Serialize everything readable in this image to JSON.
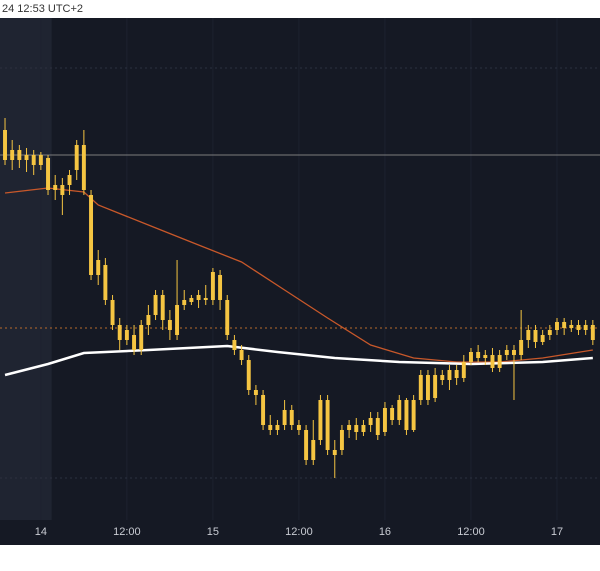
{
  "header": {
    "timestamp": "24 12:53 UTC+2"
  },
  "chart_data": {
    "type": "candlestick",
    "color": "#f5c542",
    "x": [
      -5,
      -4,
      -3,
      -2,
      -1,
      0,
      1,
      2,
      3,
      4,
      5,
      6,
      7,
      8,
      9,
      10,
      11,
      12,
      13,
      14,
      15,
      16,
      17,
      18,
      19,
      20,
      21,
      22,
      23,
      24,
      25,
      26,
      27,
      28,
      29,
      30,
      31,
      32,
      33,
      34,
      35,
      36,
      37,
      38,
      39,
      40,
      41,
      42,
      43,
      44,
      45,
      46,
      47,
      48,
      49,
      50,
      51,
      52,
      53,
      54,
      55,
      56,
      57,
      58,
      59,
      60,
      61,
      62,
      63,
      64,
      65,
      66,
      67,
      68,
      69,
      70,
      71,
      72,
      73,
      74,
      75,
      76,
      77
    ],
    "open": [
      390,
      360,
      370,
      360,
      365,
      355,
      362,
      330,
      335,
      335,
      350,
      375,
      325,
      245,
      255,
      220,
      195,
      180,
      185,
      170,
      195,
      205,
      225,
      200,
      185,
      215,
      218,
      220,
      222,
      220,
      245,
      220,
      180,
      170,
      160,
      130,
      125,
      95,
      90,
      95,
      110,
      95,
      90,
      60,
      80,
      120,
      70,
      70,
      90,
      95,
      88,
      95,
      102,
      88,
      112,
      100,
      120,
      90,
      120,
      145,
      122,
      145,
      140,
      150,
      142,
      158,
      168,
      162,
      165,
      152,
      165,
      170,
      165,
      180,
      190,
      178,
      185,
      190,
      198,
      192,
      195,
      190,
      195
    ],
    "high": [
      402,
      380,
      375,
      372,
      370,
      368,
      365,
      345,
      342,
      350,
      380,
      390,
      330,
      270,
      262,
      225,
      202,
      195,
      195,
      200,
      215,
      230,
      230,
      210,
      260,
      230,
      225,
      230,
      235,
      252,
      250,
      225,
      185,
      175,
      165,
      135,
      130,
      105,
      100,
      120,
      115,
      100,
      95,
      100,
      125,
      125,
      80,
      95,
      100,
      102,
      100,
      108,
      108,
      118,
      115,
      125,
      122,
      125,
      150,
      150,
      152,
      150,
      155,
      155,
      165,
      172,
      175,
      170,
      172,
      170,
      175,
      175,
      210,
      195,
      195,
      190,
      195,
      202,
      202,
      200,
      200,
      200,
      200
    ],
    "low": [
      355,
      350,
      352,
      348,
      345,
      350,
      325,
      320,
      305,
      325,
      340,
      325,
      240,
      235,
      215,
      190,
      170,
      175,
      165,
      165,
      185,
      200,
      190,
      180,
      180,
      210,
      215,
      212,
      215,
      215,
      210,
      180,
      165,
      155,
      125,
      115,
      90,
      85,
      85,
      90,
      90,
      85,
      55,
      55,
      75,
      65,
      42,
      65,
      82,
      80,
      84,
      88,
      80,
      84,
      95,
      95,
      85,
      88,
      115,
      115,
      118,
      135,
      130,
      135,
      138,
      155,
      158,
      155,
      148,
      148,
      160,
      120,
      160,
      172,
      172,
      175,
      180,
      185,
      185,
      188,
      185,
      185,
      175
    ],
    "close": [
      360,
      370,
      360,
      365,
      355,
      365,
      330,
      335,
      325,
      345,
      375,
      330,
      245,
      260,
      220,
      195,
      180,
      190,
      170,
      195,
      205,
      225,
      200,
      190,
      215,
      220,
      222,
      225,
      220,
      248,
      220,
      185,
      170,
      160,
      130,
      125,
      95,
      90,
      95,
      110,
      95,
      90,
      60,
      80,
      120,
      70,
      65,
      90,
      95,
      88,
      95,
      102,
      85,
      112,
      100,
      120,
      90,
      120,
      145,
      120,
      145,
      140,
      150,
      142,
      158,
      168,
      162,
      165,
      152,
      165,
      170,
      165,
      180,
      190,
      178,
      185,
      190,
      198,
      192,
      195,
      190,
      195,
      180
    ],
    "lines": [
      {
        "color": "#c8582a",
        "x": [
          -5,
          1,
          6,
          8,
          15,
          22,
          28,
          34,
          40,
          46,
          52,
          58,
          64,
          70,
          77
        ],
        "values": [
          327,
          332,
          328,
          315,
          295,
          275,
          258,
          230,
          202,
          175,
          162,
          158,
          158,
          162,
          170
        ]
      },
      {
        "color": "#ffffff",
        "x": [
          -5,
          1,
          6,
          15,
          26,
          33,
          41,
          50,
          60,
          70,
          77
        ],
        "values": [
          145,
          156,
          167,
          170,
          174,
          168,
          162,
          158,
          156,
          158,
          162
        ]
      }
    ],
    "hlines": [
      {
        "value": 365,
        "color": "#7d7d7d",
        "dash": false
      },
      {
        "value": 192,
        "color": "#b86a2c",
        "dash": true
      },
      {
        "value": 452,
        "color": "#2c3140",
        "dash": true
      },
      {
        "value": 42,
        "color": "#2c3140",
        "dash": true
      }
    ],
    "shade_end": 1.5,
    "xlim": [
      -5.7,
      78
    ],
    "ylim": [
      0,
      502
    ],
    "xticks": [
      {
        "value": 0,
        "label": "14"
      },
      {
        "value": 12,
        "label": "12:00"
      },
      {
        "value": 24,
        "label": "15"
      },
      {
        "value": 36,
        "label": "12:00"
      },
      {
        "value": 48,
        "label": "16"
      },
      {
        "value": 60,
        "label": "12:00"
      },
      {
        "value": 72,
        "label": "17"
      }
    ]
  }
}
